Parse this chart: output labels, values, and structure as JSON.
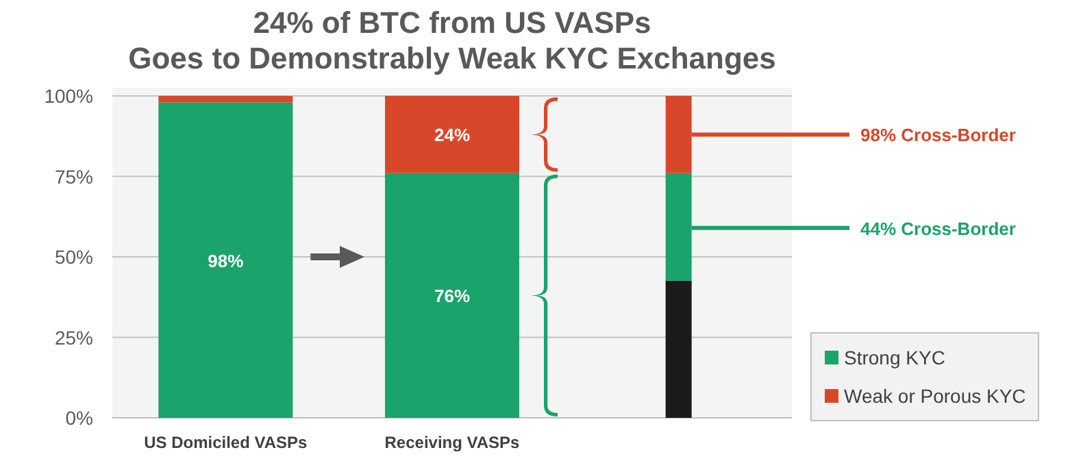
{
  "chart_data": {
    "type": "bar",
    "stacked": true,
    "title": "24% of BTC from US VASPs\nGoes to Demonstrably Weak KYC Exchanges",
    "categories": [
      "US  Domiciled VASPs",
      "Receiving VASPs",
      null
    ],
    "series": [
      {
        "color": "#1a1a1a",
        "values": [
          0,
          0,
          42.6
        ]
      },
      {
        "name": "Strong KYC",
        "color": "#1aa36a",
        "values": [
          98,
          76,
          33.4
        ],
        "value_labels": [
          "98%",
          "76%",
          null
        ]
      },
      {
        "name": "Weak or Porous KYC",
        "color": "#d9472b",
        "values": [
          2,
          24,
          24
        ],
        "value_labels": [
          null,
          "24%",
          null
        ]
      }
    ],
    "ylim": [
      0,
      100
    ],
    "yticks": [
      {
        "value": 0,
        "label": "0%"
      },
      {
        "value": 25,
        "label": "25%"
      },
      {
        "value": 50,
        "label": "50%"
      },
      {
        "value": 75,
        "label": "75%"
      },
      {
        "value": 100,
        "label": "100%"
      }
    ],
    "grid": "y",
    "legend": "bottom right",
    "annotations": [
      "98% Cross-Border",
      "44% Cross-Border"
    ]
  }
}
